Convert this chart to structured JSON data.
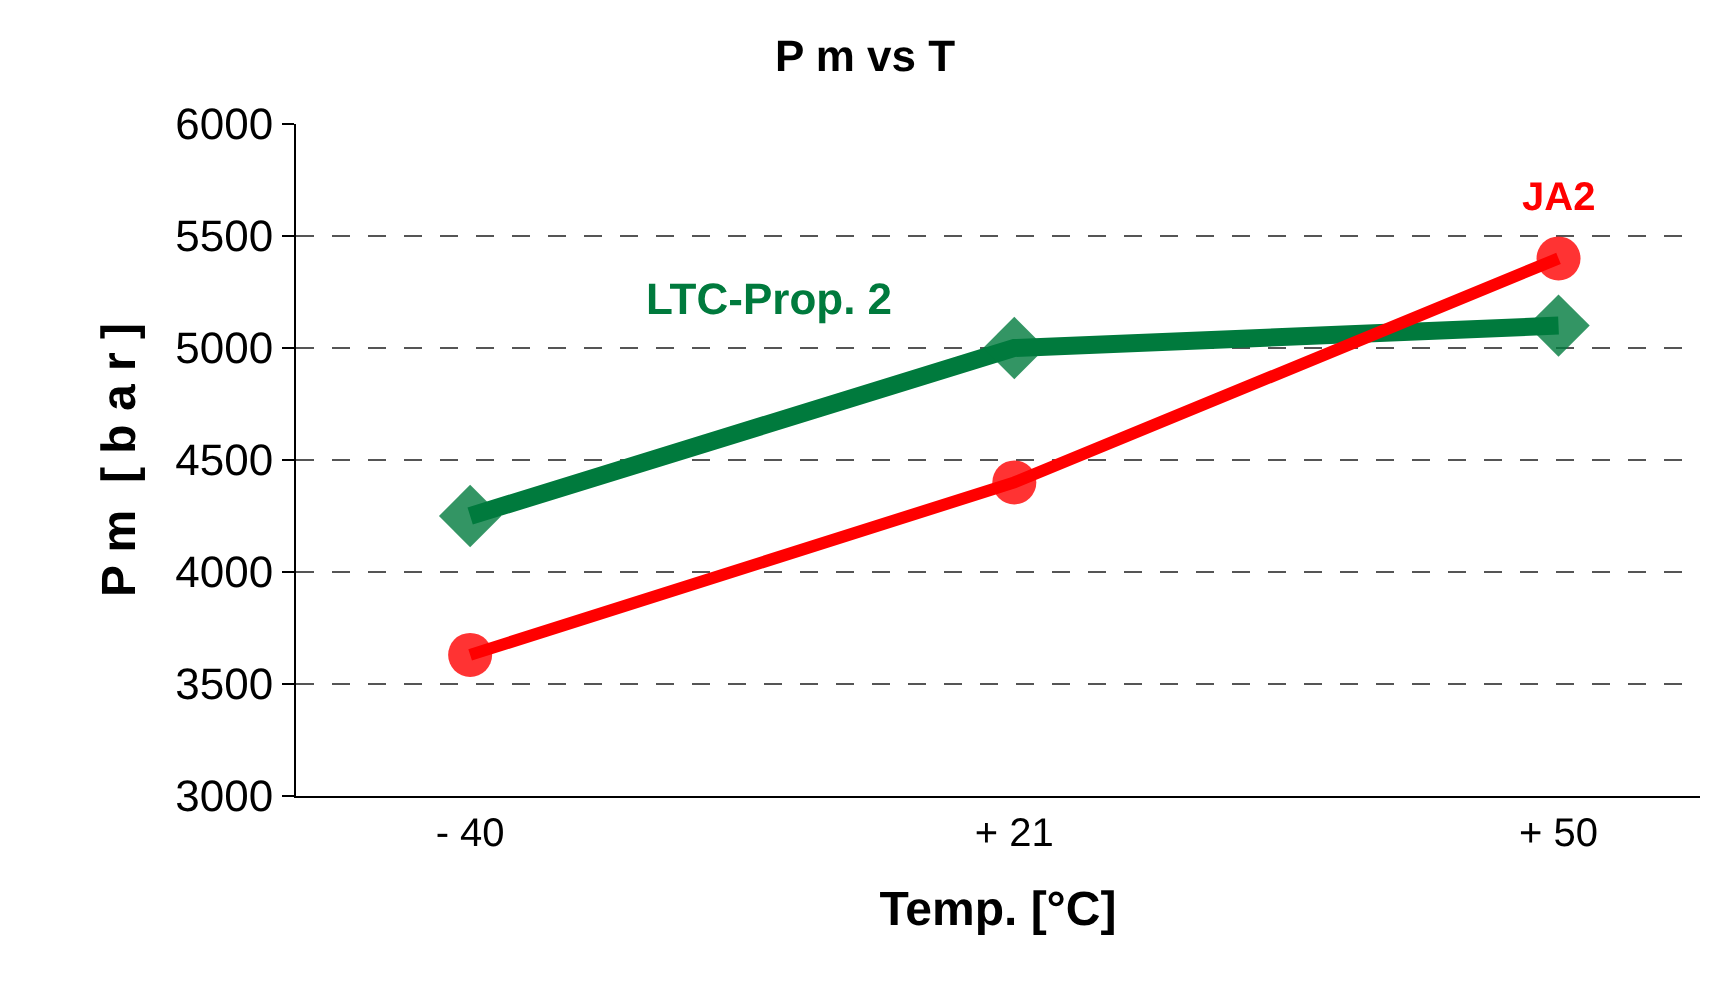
{
  "chart_data": {
    "type": "line",
    "title": "P m vs T",
    "xlabel": "Temp. [°C]",
    "ylabel": "P m  [ b a r ]",
    "categories": [
      "- 40",
      "+ 21",
      "+ 50"
    ],
    "series": [
      {
        "name": "LTC-Prop. 2",
        "color": "#007a3d",
        "marker": "diamond",
        "values": [
          4250,
          5000,
          5100
        ]
      },
      {
        "name": "JA2",
        "color": "#ff0000",
        "marker": "circle",
        "values": [
          3630,
          4400,
          5400
        ]
      }
    ],
    "ylim": [
      3000,
      6000
    ],
    "yticks": [
      3000,
      3500,
      4000,
      4500,
      5000,
      5500,
      6000
    ],
    "grid": "y",
    "legend": false,
    "line_style": "solid"
  }
}
